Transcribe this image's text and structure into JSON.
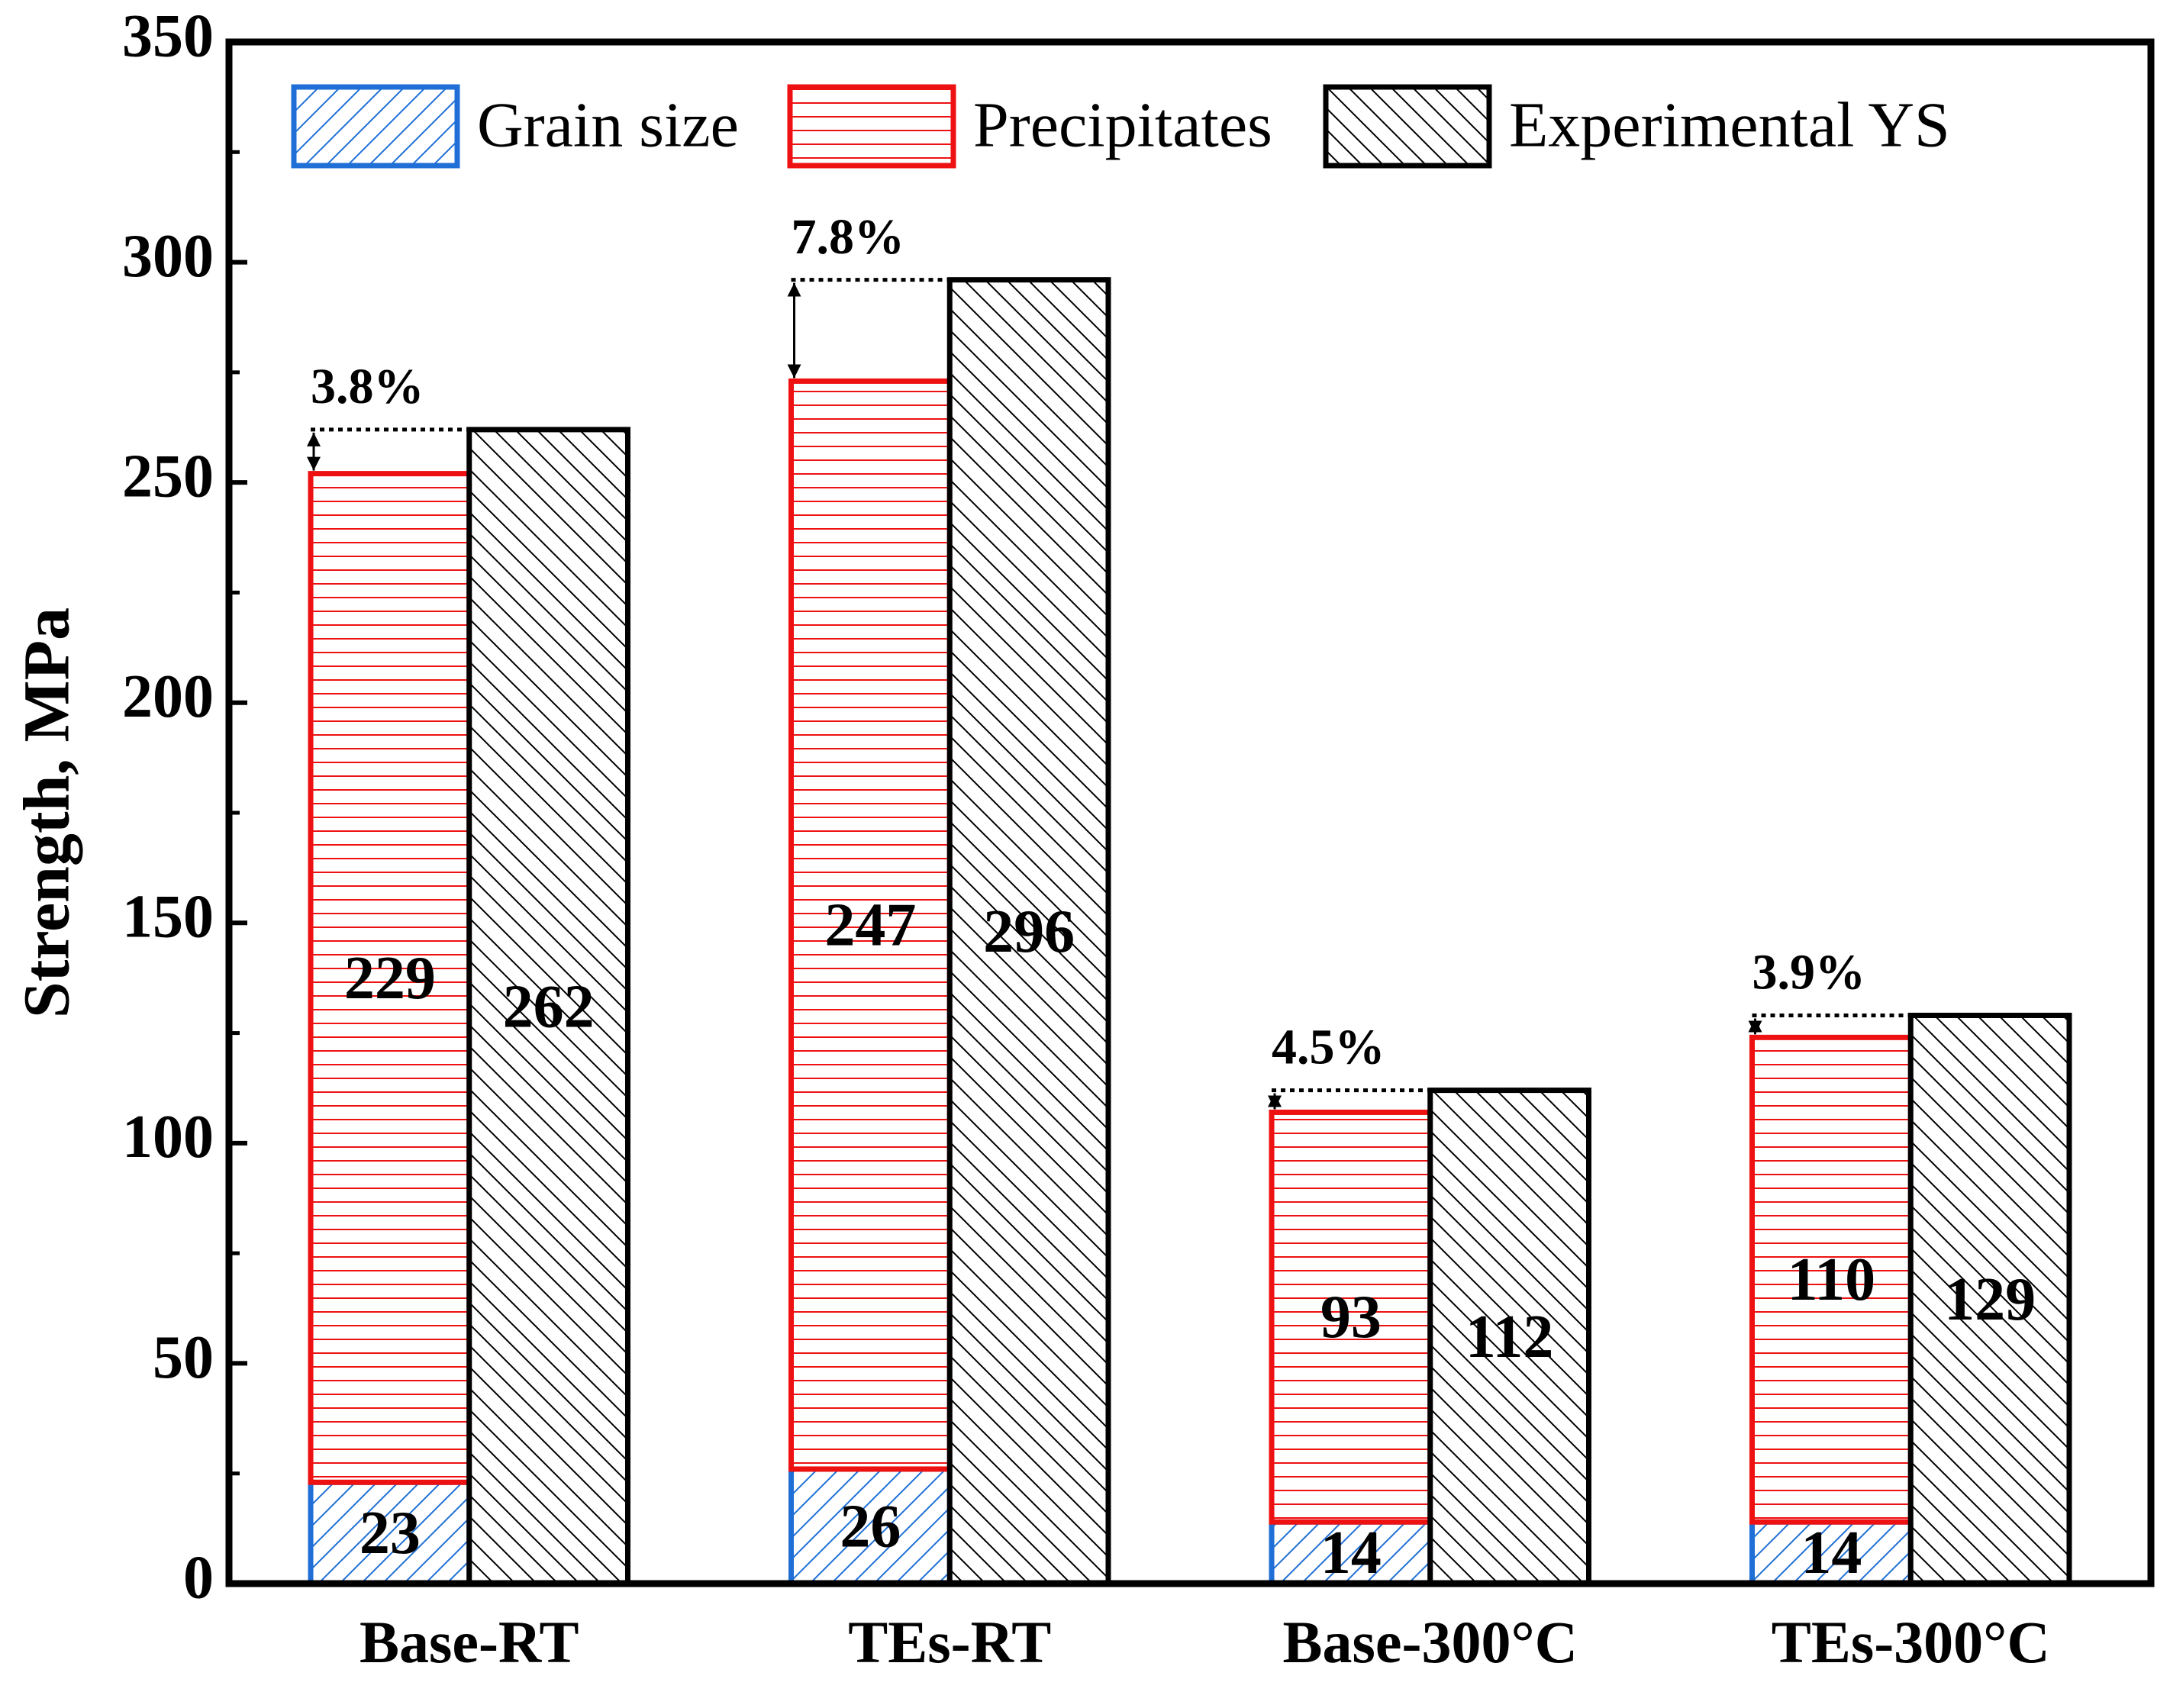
{
  "chart_data": {
    "type": "bar",
    "y_label": "Strength, MPa",
    "categories": [
      "Base-RT",
      "TEs-RT",
      "Base-300°C",
      "TEs-300°C"
    ],
    "series": [
      {
        "name": "Grain size",
        "color": "#1f6fd6",
        "stack": true,
        "pattern": "diagonal",
        "values": [
          23,
          26,
          14,
          14
        ]
      },
      {
        "name": "Precipitates",
        "color": "#ee1111",
        "stack": true,
        "pattern": "horizontal",
        "values": [
          229,
          247,
          93,
          110
        ]
      },
      {
        "name": "Experimental YS",
        "color": "#000000",
        "stack": false,
        "pattern": "backslash",
        "values": [
          262,
          296,
          112,
          129
        ]
      }
    ],
    "annotations": [
      "3.8%",
      "7.8%",
      "4.5%",
      "3.9%"
    ],
    "ylim": [
      0,
      350
    ],
    "yticks": [
      0,
      50,
      100,
      150,
      200,
      250,
      300,
      350
    ],
    "minor_ticks": true
  }
}
